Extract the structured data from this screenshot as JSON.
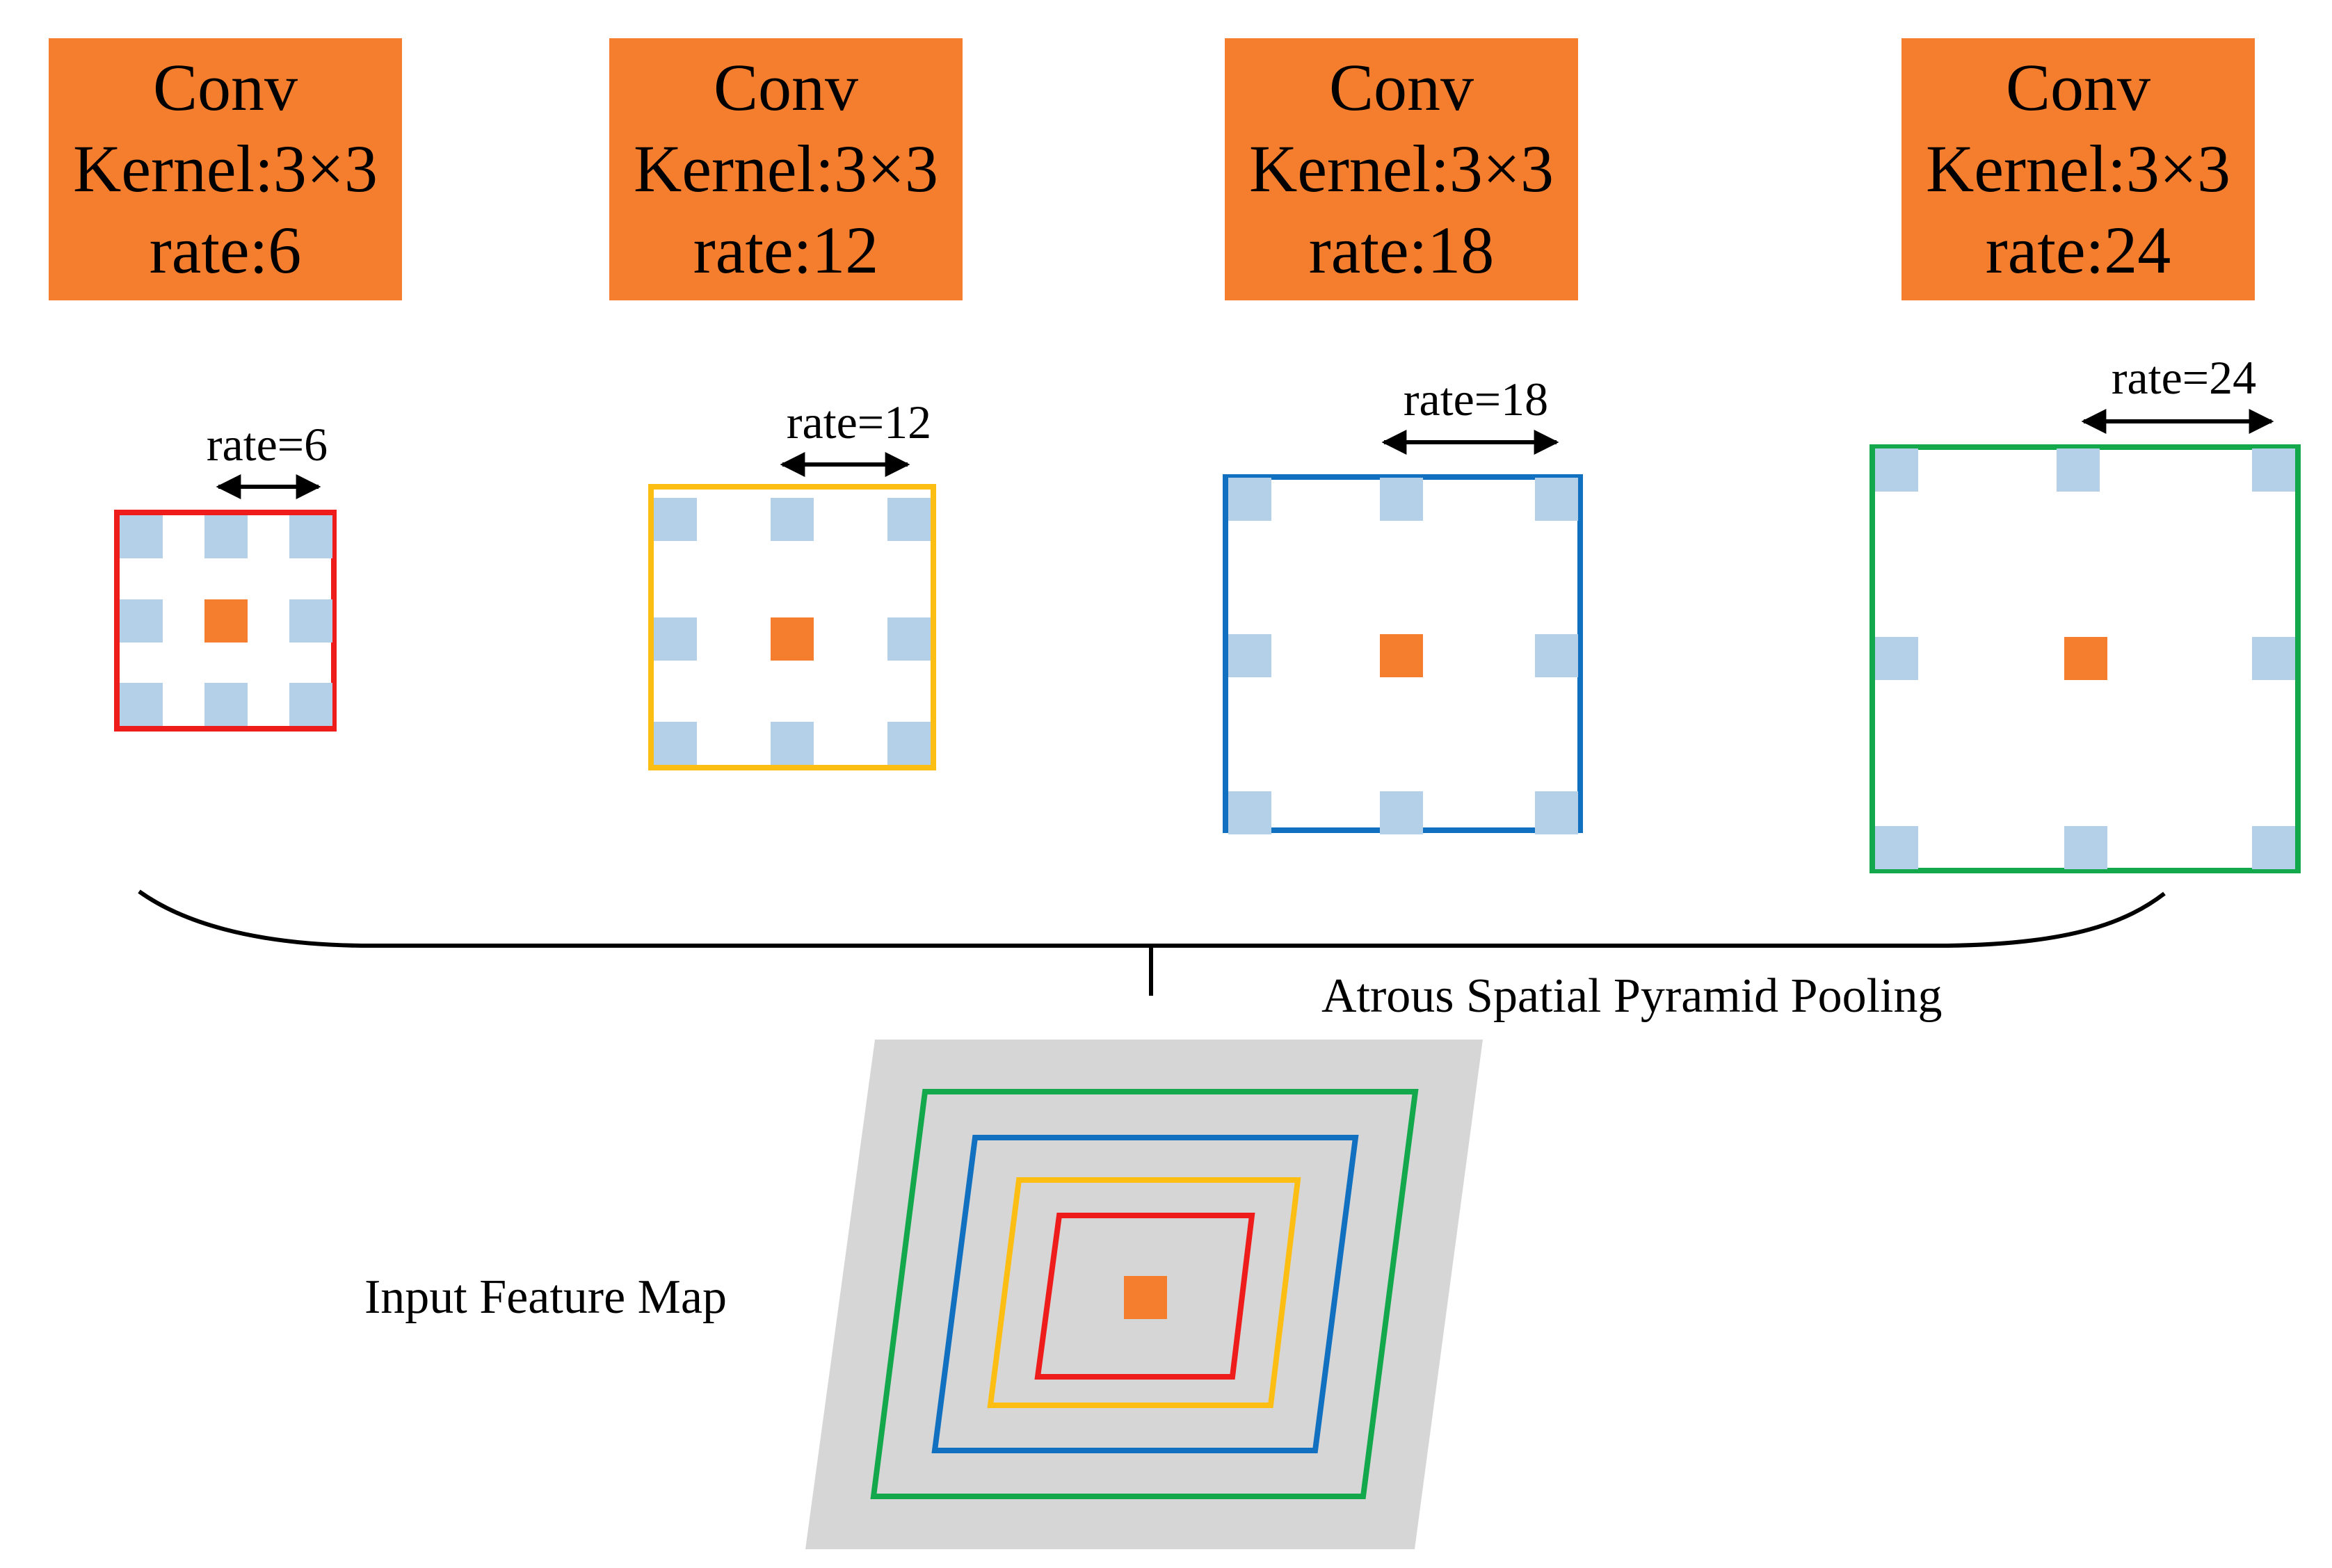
{
  "colors": {
    "orange": "#f47e2e",
    "light_blue": "#b4cfe8",
    "red": "#ef1c1c",
    "yellow": "#fdbe14",
    "blue": "#1170c0",
    "green": "#13a84b",
    "feature_map_fill": "#d6d6d6",
    "text": "#000000"
  },
  "conv_boxes": [
    {
      "title": "Conv",
      "kernel": "Kernel:3×3",
      "rate": "rate:6"
    },
    {
      "title": "Conv",
      "kernel": "Kernel:3×3",
      "rate": "rate:12"
    },
    {
      "title": "Conv",
      "kernel": "Kernel:3×3",
      "rate": "rate:18"
    },
    {
      "title": "Conv",
      "kernel": "Kernel:3×3",
      "rate": "rate:24"
    }
  ],
  "kernels": [
    {
      "rate_label": "rate=6",
      "border_color": "red"
    },
    {
      "rate_label": "rate=12",
      "border_color": "yellow"
    },
    {
      "rate_label": "rate=18",
      "border_color": "blue"
    },
    {
      "rate_label": "rate=24",
      "border_color": "green"
    }
  ],
  "aspp_label": "Atrous Spatial Pyramid Pooling",
  "input_label": "Input Feature Map",
  "feature_map_frames": [
    "green",
    "blue",
    "yellow",
    "red"
  ]
}
